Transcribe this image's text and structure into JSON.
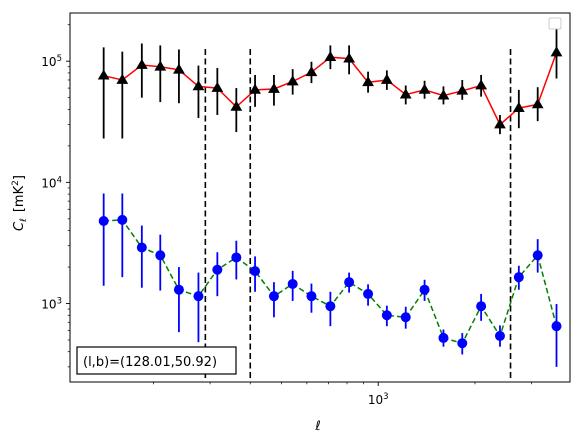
{
  "chart_data": {
    "type": "scatter",
    "xscale": "log",
    "yscale": "log",
    "xlabel": "ℓ",
    "ylabel_main": "C",
    "ylabel_sub": "ℓ",
    "ylabel_unit": "[mK",
    "ylabel_unit_sup": "2",
    "ylabel_unit_close": "]",
    "xlim": [
      110,
      3950
    ],
    "ylim": [
      225,
      250000
    ],
    "x_ticks": [
      {
        "value": 1000,
        "base": "10",
        "exp": "3"
      }
    ],
    "y_ticks": [
      {
        "value": 1000,
        "base": "10",
        "exp": "3"
      },
      {
        "value": 10000,
        "base": "10",
        "exp": "4"
      },
      {
        "value": 100000,
        "base": "10",
        "exp": "5"
      }
    ],
    "vlines": [
      290,
      400,
      2580
    ],
    "annotation": "(l,b)=(128.01,50.92)",
    "legend": "top-right (empty)",
    "series": [
      {
        "marker": "triangle",
        "line_style": "solid",
        "line_color": "#ff0000",
        "marker_color": "#000000",
        "errorbar_color": "#000000",
        "points": [
          {
            "x": 140,
            "y": 76000,
            "ylo": 23000,
            "yhi": 130000
          },
          {
            "x": 160,
            "y": 70000,
            "ylo": 23000,
            "yhi": 120000
          },
          {
            "x": 184,
            "y": 93000,
            "ylo": 50000,
            "yhi": 140000
          },
          {
            "x": 210,
            "y": 90000,
            "ylo": 46000,
            "yhi": 135000
          },
          {
            "x": 240,
            "y": 85000,
            "ylo": 45000,
            "yhi": 125000
          },
          {
            "x": 276,
            "y": 62000,
            "ylo": 34000,
            "yhi": 92000
          },
          {
            "x": 316,
            "y": 60000,
            "ylo": 36000,
            "yhi": 88000
          },
          {
            "x": 362,
            "y": 42000,
            "ylo": 26000,
            "yhi": 60000
          },
          {
            "x": 414,
            "y": 58000,
            "ylo": 42000,
            "yhi": 77000
          },
          {
            "x": 474,
            "y": 59000,
            "ylo": 43000,
            "yhi": 77000
          },
          {
            "x": 542,
            "y": 68000,
            "ylo": 53000,
            "yhi": 86000
          },
          {
            "x": 620,
            "y": 81000,
            "ylo": 66000,
            "yhi": 99000
          },
          {
            "x": 710,
            "y": 108000,
            "ylo": 86000,
            "yhi": 135000
          },
          {
            "x": 812,
            "y": 105000,
            "ylo": 78000,
            "yhi": 135000
          },
          {
            "x": 930,
            "y": 67000,
            "ylo": 55000,
            "yhi": 82000
          },
          {
            "x": 1064,
            "y": 70000,
            "ylo": 58000,
            "yhi": 84000
          },
          {
            "x": 1218,
            "y": 53000,
            "ylo": 44000,
            "yhi": 63000
          },
          {
            "x": 1394,
            "y": 58000,
            "ylo": 49000,
            "yhi": 69000
          },
          {
            "x": 1596,
            "y": 52000,
            "ylo": 44000,
            "yhi": 62000
          },
          {
            "x": 1826,
            "y": 57000,
            "ylo": 48000,
            "yhi": 70000
          },
          {
            "x": 2090,
            "y": 63000,
            "ylo": 51000,
            "yhi": 77000
          },
          {
            "x": 2392,
            "y": 30000,
            "ylo": 25000,
            "yhi": 36000
          },
          {
            "x": 2738,
            "y": 41000,
            "ylo": 28000,
            "yhi": 58000
          },
          {
            "x": 3134,
            "y": 44000,
            "ylo": 32000,
            "yhi": 61000
          },
          {
            "x": 3586,
            "y": 118000,
            "ylo": 72000,
            "yhi": 190000
          }
        ]
      },
      {
        "marker": "circle",
        "line_style": "dashed",
        "line_color": "#008000",
        "marker_color": "#0000ff",
        "errorbar_color": "#0000ff",
        "points": [
          {
            "x": 140,
            "y": 4800,
            "ylo": 1400,
            "yhi": 8100
          },
          {
            "x": 160,
            "y": 4900,
            "ylo": 1650,
            "yhi": 8100
          },
          {
            "x": 184,
            "y": 2900,
            "ylo": 1350,
            "yhi": 4400
          },
          {
            "x": 210,
            "y": 2500,
            "ylo": 1280,
            "yhi": 3700
          },
          {
            "x": 240,
            "y": 1300,
            "ylo": 580,
            "yhi": 2000
          },
          {
            "x": 276,
            "y": 1150,
            "ylo": 480,
            "yhi": 1800
          },
          {
            "x": 316,
            "y": 1900,
            "ylo": 1150,
            "yhi": 2650
          },
          {
            "x": 362,
            "y": 2400,
            "ylo": 1580,
            "yhi": 3300
          },
          {
            "x": 414,
            "y": 1850,
            "ylo": 1250,
            "yhi": 2450
          },
          {
            "x": 474,
            "y": 1150,
            "ylo": 770,
            "yhi": 1500
          },
          {
            "x": 542,
            "y": 1450,
            "ylo": 1050,
            "yhi": 1860
          },
          {
            "x": 620,
            "y": 1150,
            "ylo": 840,
            "yhi": 1460
          },
          {
            "x": 710,
            "y": 950,
            "ylo": 650,
            "yhi": 1250
          },
          {
            "x": 812,
            "y": 1500,
            "ylo": 1230,
            "yhi": 1800
          },
          {
            "x": 930,
            "y": 1200,
            "ylo": 960,
            "yhi": 1440
          },
          {
            "x": 1064,
            "y": 800,
            "ylo": 650,
            "yhi": 960
          },
          {
            "x": 1218,
            "y": 770,
            "ylo": 620,
            "yhi": 940
          },
          {
            "x": 1394,
            "y": 1300,
            "ylo": 1050,
            "yhi": 1570
          },
          {
            "x": 1596,
            "y": 520,
            "ylo": 440,
            "yhi": 610
          },
          {
            "x": 1826,
            "y": 470,
            "ylo": 380,
            "yhi": 570
          },
          {
            "x": 2090,
            "y": 950,
            "ylo": 720,
            "yhi": 1200
          },
          {
            "x": 2392,
            "y": 540,
            "ylo": 440,
            "yhi": 660
          },
          {
            "x": 2738,
            "y": 1650,
            "ylo": 1300,
            "yhi": 2050
          },
          {
            "x": 3134,
            "y": 2500,
            "ylo": 1800,
            "yhi": 3400
          },
          {
            "x": 3586,
            "y": 650,
            "ylo": 300,
            "yhi": 990
          }
        ]
      }
    ]
  }
}
